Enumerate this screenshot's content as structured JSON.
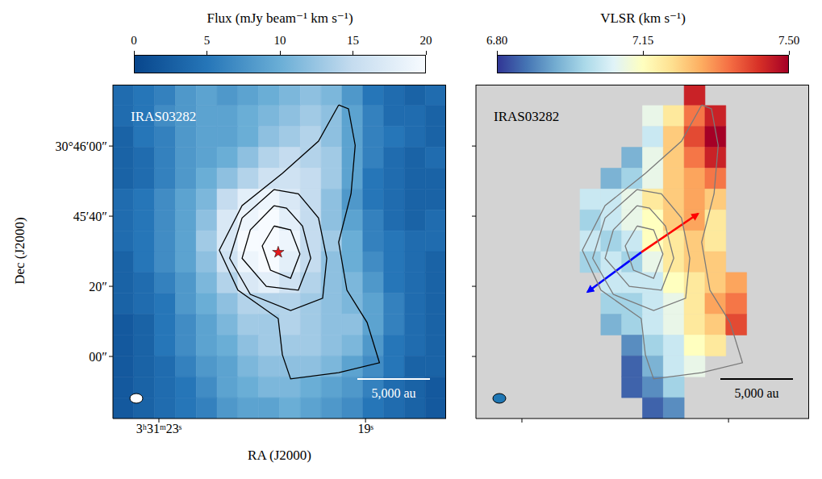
{
  "chart_data": [
    {
      "type": "heatmap",
      "title": "IRAS03282",
      "x_label": "RA (J2000)",
      "y_label": "Dec (J2000)",
      "xlim": [
        23.89,
        17.44
      ],
      "xticks": [
        {
          "value": 23,
          "label": "3ʰ31ᵐ23ˢ"
        },
        {
          "value": 19,
          "label": "19ˢ"
        }
      ],
      "ylim": [
        -17.7,
        77.5
      ],
      "yticks": [
        {
          "value": 60,
          "label": "30°46′00″"
        },
        {
          "value": 40,
          "label": "45′40″"
        },
        {
          "value": 20,
          "label": "20″"
        },
        {
          "value": 0,
          "label": "00″"
        }
      ],
      "colorbar_label": "Flux (mJy beam⁻¹ km s⁻¹)",
      "colorbar_range": [
        0,
        20
      ],
      "colorbar_ticks": [
        0,
        5,
        10,
        15,
        20
      ],
      "cells": [
        [
          4,
          5,
          6,
          8,
          9,
          8,
          9,
          10,
          11,
          12,
          11,
          8,
          5,
          4,
          3,
          4
        ],
        [
          4,
          5,
          7,
          8,
          9,
          9,
          10,
          11,
          12,
          13,
          12,
          9,
          6,
          4,
          4,
          3
        ],
        [
          3,
          5,
          6,
          8,
          9,
          9,
          10,
          12,
          13,
          14,
          12,
          9,
          6,
          5,
          4,
          3
        ],
        [
          3,
          4,
          6,
          8,
          9,
          10,
          12,
          14,
          15,
          14,
          13,
          9,
          6,
          4,
          3,
          4
        ],
        [
          3,
          4,
          6,
          8,
          10,
          12,
          14,
          16,
          16,
          15,
          13,
          9,
          5,
          4,
          3,
          3
        ],
        [
          4,
          5,
          7,
          9,
          11,
          15,
          18,
          19,
          17,
          15,
          12,
          8,
          5,
          4,
          3,
          3
        ],
        [
          4,
          5,
          7,
          9,
          12,
          17,
          19,
          20,
          18,
          15,
          12,
          9,
          6,
          4,
          3,
          4
        ],
        [
          4,
          5,
          7,
          9,
          13,
          17,
          20,
          20,
          19,
          15,
          13,
          10,
          6,
          5,
          4,
          4
        ],
        [
          3,
          5,
          7,
          9,
          12,
          16,
          19,
          20,
          18,
          15,
          12,
          10,
          7,
          5,
          4,
          3
        ],
        [
          3,
          4,
          6,
          8,
          11,
          14,
          17,
          18,
          16,
          14,
          12,
          11,
          8,
          5,
          4,
          3
        ],
        [
          3,
          4,
          5,
          8,
          10,
          12,
          14,
          14,
          14,
          13,
          12,
          11,
          9,
          6,
          4,
          3
        ],
        [
          2,
          3,
          5,
          7,
          9,
          11,
          13,
          13,
          14,
          13,
          12,
          12,
          9,
          6,
          4,
          3
        ],
        [
          2,
          3,
          5,
          7,
          9,
          10,
          12,
          13,
          13,
          13,
          12,
          11,
          8,
          5,
          4,
          3
        ],
        [
          2,
          3,
          4,
          6,
          8,
          9,
          11,
          12,
          12,
          12,
          11,
          9,
          7,
          5,
          3,
          3
        ],
        [
          2,
          3,
          4,
          5,
          7,
          9,
          10,
          11,
          11,
          10,
          9,
          8,
          6,
          4,
          3,
          2
        ],
        [
          2,
          3,
          4,
          5,
          6,
          8,
          9,
          9,
          10,
          9,
          8,
          7,
          5,
          4,
          3,
          2
        ]
      ],
      "contours": [
        [
          [
            19.52,
            71.7
          ],
          [
            19.91,
            61.4
          ],
          [
            20.61,
            52.2
          ],
          [
            21.39,
            43.0
          ],
          [
            21.83,
            30.3
          ],
          [
            21.47,
            18.9
          ],
          [
            20.69,
            10.8
          ],
          [
            20.61,
            0.5
          ],
          [
            20.45,
            -6.4
          ],
          [
            19.52,
            -4.6
          ],
          [
            18.73,
            -1.8
          ],
          [
            18.97,
            9.7
          ],
          [
            19.36,
            18.9
          ],
          [
            19.52,
            32.6
          ],
          [
            19.28,
            46.4
          ],
          [
            19.2,
            60.2
          ],
          [
            19.33,
            70.6
          ]
        ],
        [
          [
            20.77,
            47.6
          ],
          [
            21.39,
            39.5
          ],
          [
            21.63,
            28.0
          ],
          [
            21.23,
            17.7
          ],
          [
            20.45,
            13.1
          ],
          [
            19.83,
            16.6
          ],
          [
            19.75,
            28.0
          ],
          [
            19.91,
            39.5
          ],
          [
            20.3,
            46.4
          ]
        ],
        [
          [
            20.77,
            43.0
          ],
          [
            21.23,
            36.1
          ],
          [
            21.39,
            28.0
          ],
          [
            20.92,
            20.0
          ],
          [
            20.3,
            18.9
          ],
          [
            20.06,
            28.0
          ],
          [
            20.22,
            37.2
          ],
          [
            20.53,
            42.3
          ]
        ],
        [
          [
            20.77,
            37.2
          ],
          [
            21.0,
            31.5
          ],
          [
            20.84,
            24.6
          ],
          [
            20.45,
            22.3
          ],
          [
            20.27,
            29.2
          ],
          [
            20.45,
            36.1
          ]
        ]
      ],
      "source": [
        20.69,
        29.7
      ],
      "annotations": [
        "5,000 au"
      ]
    },
    {
      "type": "heatmap",
      "title": "IRAS03282",
      "tick_labels": false,
      "xlim": [
        23.89,
        17.44
      ],
      "xticks": [
        23,
        19
      ],
      "ylim": [
        -17.7,
        77.5
      ],
      "yticks": [
        60,
        40,
        20,
        0
      ],
      "colorbar_label": "VLSR (km s⁻¹)",
      "colorbar_range": [
        6.8,
        7.5
      ],
      "colorbar_ticks": [
        {
          "value": 6.8,
          "label": "6.80"
        },
        {
          "value": 7.15,
          "label": "7.15"
        },
        {
          "value": 7.5,
          "label": "7.50"
        }
      ],
      "cells": [
        [
          null,
          null,
          null,
          null,
          null,
          null,
          null,
          null,
          null,
          null,
          7.45,
          null,
          null,
          null,
          null,
          null
        ],
        [
          null,
          null,
          null,
          null,
          null,
          null,
          null,
          null,
          7.1,
          7.2,
          7.35,
          7.45,
          null,
          null,
          null,
          null
        ],
        [
          null,
          null,
          null,
          null,
          null,
          null,
          null,
          null,
          7.05,
          7.25,
          7.4,
          7.5,
          null,
          null,
          null,
          null
        ],
        [
          null,
          null,
          null,
          null,
          null,
          null,
          null,
          6.95,
          7.1,
          7.25,
          7.35,
          7.45,
          null,
          null,
          null,
          null
        ],
        [
          null,
          null,
          null,
          null,
          null,
          null,
          6.95,
          7.0,
          7.1,
          7.25,
          7.3,
          7.35,
          null,
          null,
          null,
          null
        ],
        [
          null,
          null,
          null,
          null,
          null,
          7.05,
          7.05,
          7.1,
          7.2,
          7.25,
          7.3,
          7.25,
          null,
          null,
          null,
          null
        ],
        [
          null,
          null,
          null,
          null,
          null,
          7.0,
          7.05,
          7.1,
          7.15,
          7.25,
          7.3,
          7.2,
          null,
          null,
          null,
          null
        ],
        [
          null,
          null,
          null,
          null,
          null,
          7.05,
          7.0,
          7.05,
          7.15,
          7.2,
          7.25,
          7.2,
          null,
          null,
          null,
          null
        ],
        [
          null,
          null,
          null,
          null,
          null,
          7.0,
          7.05,
          7.0,
          7.1,
          7.2,
          7.25,
          7.25,
          null,
          null,
          null,
          null
        ],
        [
          null,
          null,
          null,
          null,
          null,
          null,
          7.05,
          7.05,
          7.05,
          7.15,
          7.2,
          7.25,
          7.3,
          null,
          null,
          null
        ],
        [
          null,
          null,
          null,
          null,
          null,
          null,
          7.0,
          7.0,
          7.05,
          7.1,
          7.2,
          7.3,
          7.35,
          null,
          null,
          null
        ],
        [
          null,
          null,
          null,
          null,
          null,
          null,
          6.95,
          7.0,
          7.05,
          7.1,
          7.2,
          7.25,
          7.4,
          null,
          null,
          null
        ],
        [
          null,
          null,
          null,
          null,
          null,
          null,
          null,
          6.9,
          7.0,
          7.05,
          7.15,
          7.2,
          null,
          null,
          null,
          null
        ],
        [
          null,
          null,
          null,
          null,
          null,
          null,
          null,
          6.85,
          6.95,
          7.05,
          7.1,
          null,
          null,
          null,
          null,
          null
        ],
        [
          null,
          null,
          null,
          null,
          null,
          null,
          null,
          6.85,
          6.9,
          7.0,
          null,
          null,
          null,
          null,
          null,
          null
        ],
        [
          null,
          null,
          null,
          null,
          null,
          null,
          null,
          null,
          6.85,
          6.9,
          null,
          null,
          null,
          null,
          null,
          null
        ]
      ],
      "contours": [
        [
          [
            19.52,
            71.7
          ],
          [
            19.91,
            61.4
          ],
          [
            20.61,
            52.2
          ],
          [
            21.39,
            43.0
          ],
          [
            21.83,
            30.3
          ],
          [
            21.47,
            18.9
          ],
          [
            20.69,
            10.8
          ],
          [
            20.61,
            0.5
          ],
          [
            20.45,
            -6.4
          ],
          [
            19.52,
            -4.6
          ],
          [
            18.73,
            -1.8
          ],
          [
            18.97,
            9.7
          ],
          [
            19.36,
            18.9
          ],
          [
            19.52,
            32.6
          ],
          [
            19.28,
            46.4
          ],
          [
            19.2,
            60.2
          ],
          [
            19.33,
            70.6
          ]
        ],
        [
          [
            20.77,
            47.6
          ],
          [
            21.39,
            39.5
          ],
          [
            21.63,
            28.0
          ],
          [
            21.23,
            17.7
          ],
          [
            20.45,
            13.1
          ],
          [
            19.83,
            16.6
          ],
          [
            19.75,
            28.0
          ],
          [
            19.91,
            39.5
          ],
          [
            20.3,
            46.4
          ]
        ],
        [
          [
            20.77,
            43.0
          ],
          [
            21.23,
            36.1
          ],
          [
            21.39,
            28.0
          ],
          [
            20.92,
            20.0
          ],
          [
            20.3,
            18.9
          ],
          [
            20.06,
            28.0
          ],
          [
            20.22,
            37.2
          ],
          [
            20.53,
            42.3
          ]
        ],
        [
          [
            20.77,
            37.2
          ],
          [
            21.0,
            31.5
          ],
          [
            20.84,
            24.6
          ],
          [
            20.45,
            22.3
          ],
          [
            20.27,
            29.2
          ],
          [
            20.45,
            36.1
          ]
        ]
      ],
      "arrows": [
        {
          "color": "#ff0000",
          "from": [
            20.69,
            29.7
          ],
          "to": [
            19.59,
            40.7
          ]
        },
        {
          "color": "#0000ff",
          "from": [
            20.69,
            29.7
          ],
          "to": [
            21.73,
            18.4
          ]
        }
      ],
      "annotations": [
        "5,000 au"
      ]
    }
  ]
}
